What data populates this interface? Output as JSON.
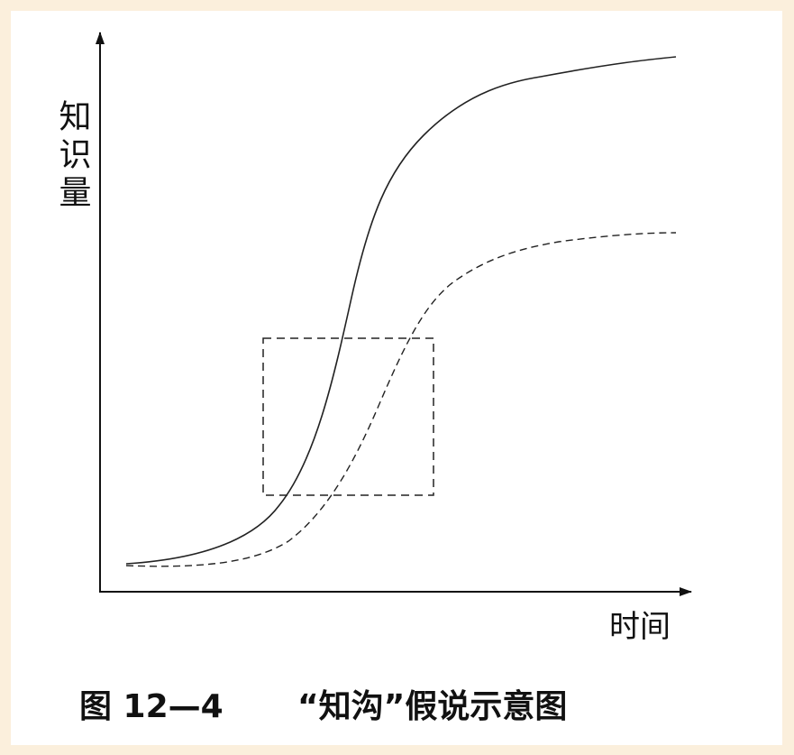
{
  "axes": {
    "y_label": "知识量",
    "x_label": "时间"
  },
  "caption": {
    "number": "图 12—4",
    "title": "“知沟”假说示意图"
  }
}
